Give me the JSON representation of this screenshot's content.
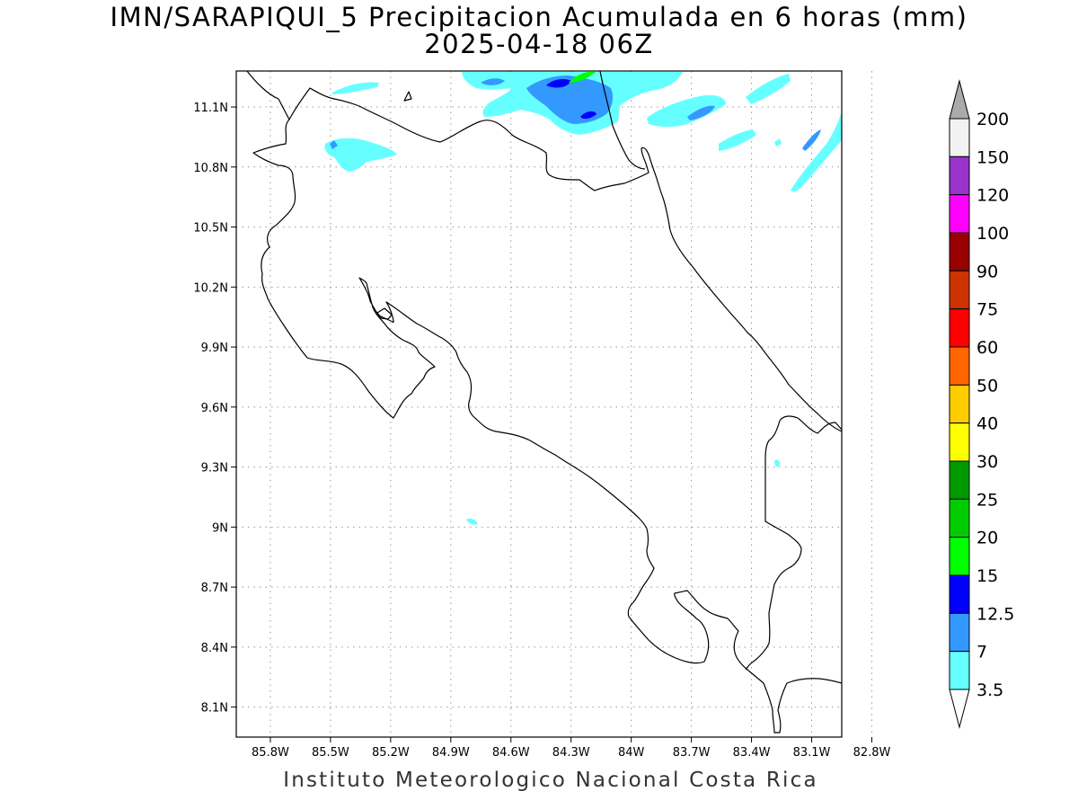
{
  "title_line1": "IMN/SARAPIQUI_5 Precipitacion Acumulada en 6 horas (mm)",
  "title_line2": "2025-04-18 06Z",
  "footer": "Instituto Meteorologico Nacional Costa Rica",
  "map": {
    "lon_range": [
      -85.97,
      -82.95
    ],
    "lat_range": [
      7.95,
      11.28
    ],
    "lat_ticks": [
      {
        "value": 11.1,
        "label": "11.1N"
      },
      {
        "value": 10.8,
        "label": "10.8N"
      },
      {
        "value": 10.5,
        "label": "10.5N"
      },
      {
        "value": 10.2,
        "label": "10.2N"
      },
      {
        "value": 9.9,
        "label": "9.9N"
      },
      {
        "value": 9.6,
        "label": "9.6N"
      },
      {
        "value": 9.3,
        "label": "9.3N"
      },
      {
        "value": 9.0,
        "label": "9N"
      },
      {
        "value": 8.7,
        "label": "8.7N"
      },
      {
        "value": 8.4,
        "label": "8.4N"
      },
      {
        "value": 8.1,
        "label": "8.1N"
      }
    ],
    "lon_ticks": [
      {
        "value": -85.8,
        "label": "85.8W"
      },
      {
        "value": -85.5,
        "label": "85.5W"
      },
      {
        "value": -85.2,
        "label": "85.2W"
      },
      {
        "value": -84.9,
        "label": "84.9W"
      },
      {
        "value": -84.6,
        "label": "84.6W"
      },
      {
        "value": -84.3,
        "label": "84.3W"
      },
      {
        "value": -84.0,
        "label": "84W"
      },
      {
        "value": -83.7,
        "label": "83.7W"
      },
      {
        "value": -83.4,
        "label": "83.4W"
      },
      {
        "value": -83.1,
        "label": "83.1W"
      },
      {
        "value": -82.8,
        "label": "82.8W"
      }
    ],
    "grid": true
  },
  "colorbar": {
    "labels": [
      "200",
      "150",
      "120",
      "100",
      "90",
      "75",
      "60",
      "50",
      "40",
      "30",
      "25",
      "20",
      "15",
      "12.5",
      "7",
      "3.5"
    ],
    "colors": [
      "#f2f2f2",
      "#9933cc",
      "#ff00ff",
      "#990000",
      "#cc3300",
      "#ff0000",
      "#ff6600",
      "#ffcc00",
      "#ffff00",
      "#009900",
      "#00cc00",
      "#00ff00",
      "#0000ff",
      "#3399ff",
      "#66ffff"
    ],
    "top_arrow_color": "#aaaaaa",
    "bottom_arrow_color": "#ffffff"
  },
  "precip_colors": {
    "c35": "#66ffff",
    "c7": "#3399ff",
    "c125": "#0000ff",
    "c15": "#00ff00"
  }
}
